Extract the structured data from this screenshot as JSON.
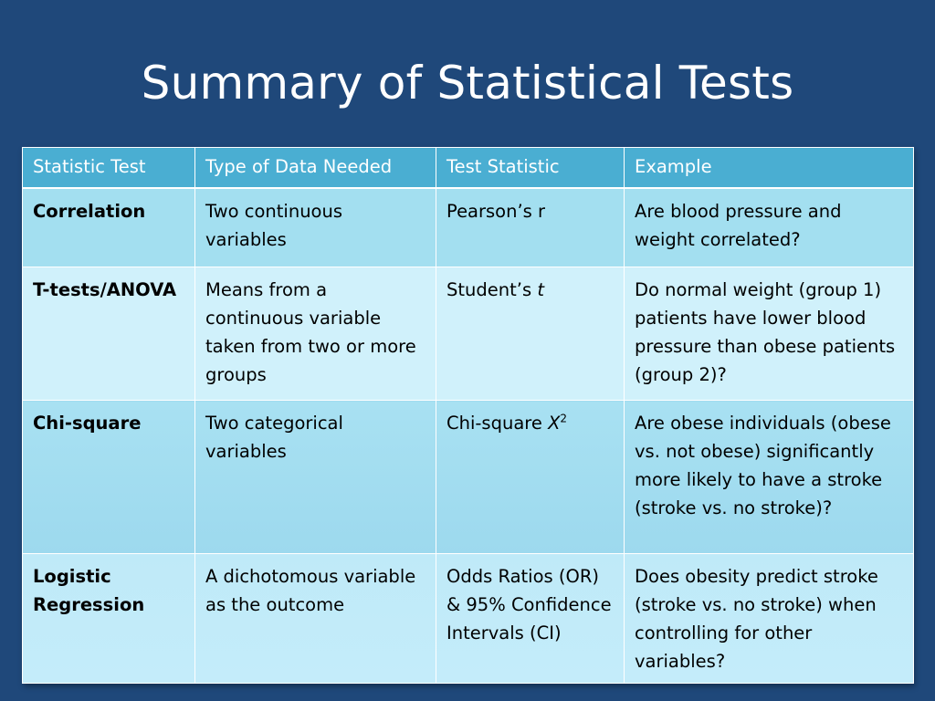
{
  "title": "Summary of Statistical Tests",
  "table": {
    "headers": [
      "Statistic Test",
      "Type of Data Needed",
      "Test Statistic",
      "Example"
    ],
    "rows": [
      {
        "test": "Correlation",
        "data_needed": "Two continuous variables",
        "statistic": "Pearson’s r",
        "example": "Are blood pressure and weight correlated?"
      },
      {
        "test": "T-tests/ANOVA",
        "data_needed": "Means from a continuous variable taken from two or more groups",
        "statistic_prefix": "Student’s ",
        "statistic_italic": "t",
        "example": "Do normal weight (group 1) patients have lower blood pressure than obese patients (group 2)?"
      },
      {
        "test": "Chi-square",
        "data_needed": "Two categorical variables",
        "statistic_prefix": "Chi-square ",
        "statistic_italic": "X",
        "statistic_sup": "2",
        "example": "Are obese individuals (obese vs. not obese) significantly more likely to have a stroke (stroke vs. no stroke)?"
      },
      {
        "test": "Logistic Regression",
        "data_needed": "A dichotomous variable as the outcome",
        "statistic": "Odds Ratios (OR) & 95% Confidence Intervals (CI)",
        "example": "Does obesity predict stroke (stroke vs. no stroke) when controlling for other variables?"
      }
    ]
  },
  "colors": {
    "background": "#1f487a",
    "header": "#4aaed2",
    "row_dark": "#a3dff0",
    "row_light": "#d0f1fb"
  }
}
